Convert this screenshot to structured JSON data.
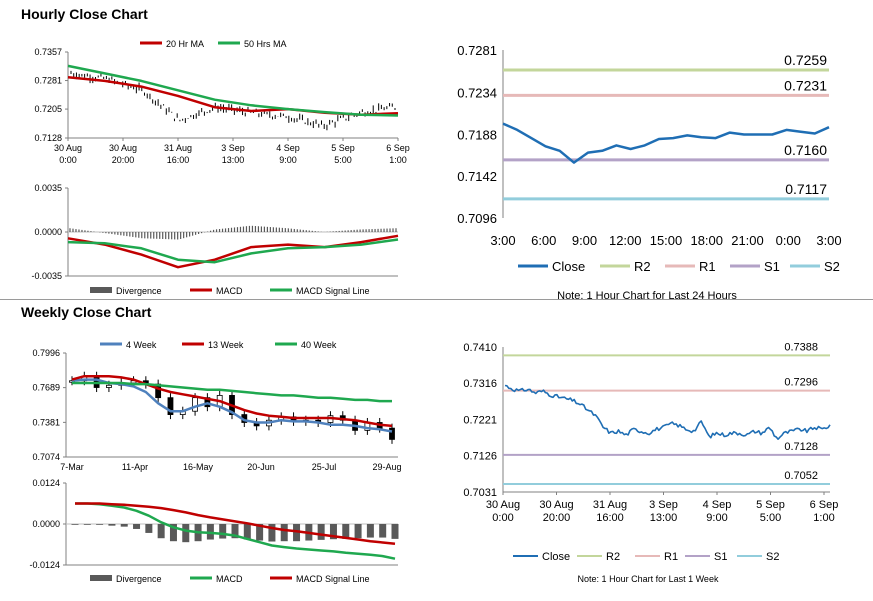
{
  "sections": {
    "hourly_title": "Hourly Close Chart",
    "weekly_title": "Weekly Close Chart"
  },
  "colors": {
    "close": "#1f6eb4",
    "ma20": "#c00000",
    "ma50": "#1fa84f",
    "r2": "#c3d69b",
    "r1": "#e6b9b8",
    "s1": "#b3a2c7",
    "s2": "#92cddc",
    "price_bar": "#000000",
    "divergence": "#595959",
    "axis": "#808080",
    "week4": "#4f81bd",
    "week13": "#c00000",
    "week40": "#1fa84f"
  },
  "chart_data": [
    {
      "id": "hourly_price",
      "type": "line",
      "title": "",
      "yticks": [
        "0.7357",
        "0.7281",
        "0.7205",
        "0.7128"
      ],
      "ylim": [
        0.7128,
        0.7357
      ],
      "xticks": [
        [
          "30 Aug",
          "0:00"
        ],
        [
          "30 Aug",
          "20:00"
        ],
        [
          "31 Aug",
          "16:00"
        ],
        [
          "3 Sep",
          "13:00"
        ],
        [
          "4 Sep",
          "9:00"
        ],
        [
          "5 Sep",
          "5:00"
        ],
        [
          "6 Sep",
          "1:00"
        ]
      ],
      "x": [
        0,
        20,
        40,
        60,
        80,
        100,
        120,
        140,
        160,
        180
      ],
      "series": [
        {
          "name": "20 Hr MA",
          "values": [
            0.729,
            0.728,
            0.7265,
            0.724,
            0.721,
            0.72,
            0.7205,
            0.7195,
            0.719,
            0.7194
          ]
        },
        {
          "name": "50 Hrs MA",
          "values": [
            0.732,
            0.73,
            0.728,
            0.7255,
            0.723,
            0.7215,
            0.7205,
            0.7197,
            0.719,
            0.7188
          ]
        },
        {
          "name": "Close",
          "values": [
            0.73,
            0.7285,
            0.7255,
            0.7175,
            0.721,
            0.7195,
            0.7185,
            0.716,
            0.7195,
            0.721
          ]
        }
      ],
      "legend": [
        "20 Hr MA",
        "50 Hrs MA"
      ]
    },
    {
      "id": "hourly_macd",
      "type": "line",
      "title": "",
      "yticks": [
        "0.0035",
        "0.0000",
        "-0.0035"
      ],
      "ylim": [
        -0.0035,
        0.0035
      ],
      "series": [
        {
          "name": "MACD",
          "values": [
            -0.0005,
            -0.001,
            -0.0018,
            -0.0028,
            -0.0022,
            -0.0012,
            -0.001,
            -0.0012,
            -0.0008,
            -0.0003
          ]
        },
        {
          "name": "MACD Signal Line",
          "values": [
            -0.0008,
            -0.0009,
            -0.0013,
            -0.0022,
            -0.0024,
            -0.0017,
            -0.0013,
            -0.0012,
            -0.001,
            -0.0006
          ]
        },
        {
          "name": "Divergence",
          "values": [
            0.0003,
            -0.0001,
            -0.0005,
            -0.0006,
            0.0002,
            0.0005,
            0.0003,
            0.0,
            0.0002,
            0.0003
          ]
        }
      ],
      "legend": [
        "Divergence",
        "MACD",
        "MACD Signal Line"
      ]
    },
    {
      "id": "hourly_24h",
      "type": "line",
      "title": "",
      "yticks": [
        "0.7281",
        "0.7234",
        "0.7188",
        "0.7142",
        "0.7096"
      ],
      "ylim": [
        0.7096,
        0.7281
      ],
      "categories": [
        "3:00",
        "6:00",
        "9:00",
        "12:00",
        "15:00",
        "18:00",
        "21:00",
        "0:00",
        "3:00"
      ],
      "close": [
        0.72,
        0.7193,
        0.7184,
        0.7175,
        0.717,
        0.7157,
        0.7168,
        0.717,
        0.7176,
        0.7172,
        0.7176,
        0.7183,
        0.7184,
        0.7187,
        0.7185,
        0.7184,
        0.719,
        0.7188,
        0.7188,
        0.7188,
        0.7193,
        0.7191,
        0.7189,
        0.7196
      ],
      "levels": [
        {
          "name": "R2",
          "value": 0.7259,
          "label": "0.7259"
        },
        {
          "name": "R1",
          "value": 0.7231,
          "label": "0.7231"
        },
        {
          "name": "S1",
          "value": 0.716,
          "label": "0.7160"
        },
        {
          "name": "S2",
          "value": 0.7117,
          "label": "0.7117"
        }
      ],
      "legend": [
        "Close",
        "R2",
        "R1",
        "S1",
        "S2"
      ],
      "note": "Note: 1 Hour Chart for Last 24 Hours"
    },
    {
      "id": "weekly_price",
      "type": "line",
      "title": "",
      "yticks": [
        "0.7996",
        "0.7689",
        "0.7381",
        "0.7074"
      ],
      "ylim": [
        0.7074,
        0.7996
      ],
      "xticks": [
        "7-Mar",
        "11-Apr",
        "16-May",
        "20-Jun",
        "25-Jul",
        "29-Aug"
      ],
      "weeks": 27,
      "series": [
        {
          "name": "4 Week",
          "values": [
            0.775,
            0.776,
            0.776,
            0.773,
            0.772,
            0.77,
            0.765,
            0.755,
            0.748,
            0.748,
            0.752,
            0.755,
            0.752,
            0.747,
            0.74,
            0.738,
            0.738,
            0.74,
            0.739,
            0.739,
            0.738,
            0.736,
            0.736,
            0.735,
            0.733,
            0.732,
            0.73
          ]
        },
        {
          "name": "13 Week",
          "values": [
            0.776,
            0.779,
            0.779,
            0.779,
            0.778,
            0.776,
            0.772,
            0.768,
            0.765,
            0.763,
            0.761,
            0.759,
            0.757,
            0.753,
            0.749,
            0.746,
            0.744,
            0.743,
            0.742,
            0.742,
            0.742,
            0.742,
            0.741,
            0.74,
            0.738,
            0.736,
            0.735
          ]
        },
        {
          "name": "40 Week",
          "values": [
            0.773,
            0.773,
            0.773,
            0.773,
            0.773,
            0.772,
            0.772,
            0.771,
            0.77,
            0.769,
            0.768,
            0.767,
            0.767,
            0.766,
            0.765,
            0.764,
            0.763,
            0.762,
            0.762,
            0.761,
            0.76,
            0.76,
            0.759,
            0.758,
            0.758,
            0.757,
            0.757
          ]
        },
        {
          "name": "Close",
          "values": [
            0.775,
            0.779,
            0.769,
            0.771,
            0.773,
            0.775,
            0.772,
            0.76,
            0.745,
            0.748,
            0.76,
            0.752,
            0.762,
            0.745,
            0.738,
            0.735,
            0.74,
            0.743,
            0.739,
            0.74,
            0.738,
            0.744,
            0.74,
            0.731,
            0.738,
            0.733,
            0.723
          ]
        }
      ],
      "legend": [
        "4 Week",
        "13 Week",
        "40 Week"
      ]
    },
    {
      "id": "weekly_macd",
      "type": "line",
      "title": "",
      "yticks": [
        "0.0124",
        "0.0000",
        "-0.0124"
      ],
      "ylim": [
        -0.0124,
        0.0124
      ],
      "series": [
        {
          "name": "MACD",
          "values": [
            0.0062,
            0.0062,
            0.006,
            0.0055,
            0.005,
            0.004,
            0.0025,
            0.0005,
            -0.001,
            -0.002,
            -0.0025,
            -0.0027,
            -0.003,
            -0.0035,
            -0.0045,
            -0.0055,
            -0.0065,
            -0.007,
            -0.0074,
            -0.0077,
            -0.008,
            -0.0083,
            -0.0087,
            -0.009,
            -0.0093,
            -0.0097,
            -0.0105
          ]
        },
        {
          "name": "MACD Signal Line",
          "values": [
            0.0062,
            0.0062,
            0.0062,
            0.006,
            0.0058,
            0.0055,
            0.0052,
            0.0048,
            0.0042,
            0.0035,
            0.0027,
            0.002,
            0.0014,
            0.0008,
            0.0002,
            -0.0005,
            -0.0012,
            -0.0018,
            -0.0022,
            -0.0027,
            -0.0032,
            -0.0037,
            -0.0042,
            -0.0047,
            -0.0052,
            -0.0056,
            -0.006
          ]
        },
        {
          "name": "Divergence",
          "values": [
            0.0,
            0.0,
            -0.0002,
            -0.0005,
            -0.0008,
            -0.0015,
            -0.0027,
            -0.0043,
            -0.0052,
            -0.0055,
            -0.0052,
            -0.0047,
            -0.0044,
            -0.0043,
            -0.0047,
            -0.005,
            -0.0053,
            -0.0052,
            -0.0052,
            -0.005,
            -0.0048,
            -0.0046,
            -0.0045,
            -0.0043,
            -0.0041,
            -0.0041,
            -0.0045
          ]
        }
      ],
      "legend": [
        "Divergence",
        "MACD",
        "MACD Signal Line"
      ]
    },
    {
      "id": "weekly_1w",
      "type": "line",
      "title": "",
      "yticks": [
        "0.7410",
        "0.7316",
        "0.7221",
        "0.7126",
        "0.7031"
      ],
      "ylim": [
        0.7031,
        0.741
      ],
      "xticks": [
        [
          "30 Aug",
          "0:00"
        ],
        [
          "30 Aug",
          "20:00"
        ],
        [
          "31 Aug",
          "16:00"
        ],
        [
          "3 Sep",
          "13:00"
        ],
        [
          "4 Sep",
          "9:00"
        ],
        [
          "5 Sep",
          "5:00"
        ],
        [
          "6 Sep",
          "1:00"
        ]
      ],
      "close": [
        0.731,
        0.73,
        0.7295,
        0.73,
        0.729,
        0.7295,
        0.7285,
        0.728,
        0.7275,
        0.727,
        0.726,
        0.7245,
        0.723,
        0.72,
        0.7185,
        0.719,
        0.718,
        0.7195,
        0.719,
        0.7185,
        0.7195,
        0.72,
        0.721,
        0.7205,
        0.7195,
        0.719,
        0.7215,
        0.7175,
        0.7185,
        0.718,
        0.7185,
        0.7185,
        0.718,
        0.719,
        0.7185,
        0.72,
        0.717,
        0.7185,
        0.719,
        0.7195,
        0.719,
        0.72,
        0.7195,
        0.7205
      ],
      "levels": [
        {
          "name": "R2",
          "value": 0.7388,
          "label": "0.7388"
        },
        {
          "name": "R1",
          "value": 0.7296,
          "label": "0.7296"
        },
        {
          "name": "S1",
          "value": 0.7128,
          "label": "0.7128"
        },
        {
          "name": "S2",
          "value": 0.7052,
          "label": "0.7052"
        }
      ],
      "legend": [
        "Close",
        "R2",
        "R1",
        "S1",
        "S2"
      ],
      "note": "Note: 1 Hour Chart for Last 1 Week"
    }
  ]
}
